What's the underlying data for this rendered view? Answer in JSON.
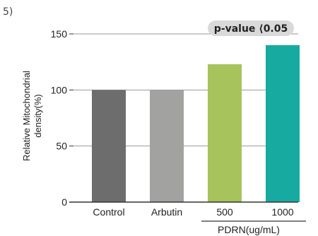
{
  "panel_label": "5)",
  "chart_data": {
    "type": "bar",
    "categories": [
      "Control",
      "Arbutin",
      "500",
      "1000"
    ],
    "values": [
      100,
      100,
      123,
      140
    ],
    "colors": [
      "#6d6d6d",
      "#a2a2a0",
      "#a6c45b",
      "#17aaa1"
    ],
    "ylabel": [
      "Relative Mitochondrial",
      "density(%)"
    ],
    "xlabel": "PDRN(ug/mL)",
    "ylim": [
      0,
      150
    ],
    "yticks": [
      0,
      50,
      100,
      150
    ],
    "grid": true,
    "annotation": "p-value ⟨0.05"
  }
}
